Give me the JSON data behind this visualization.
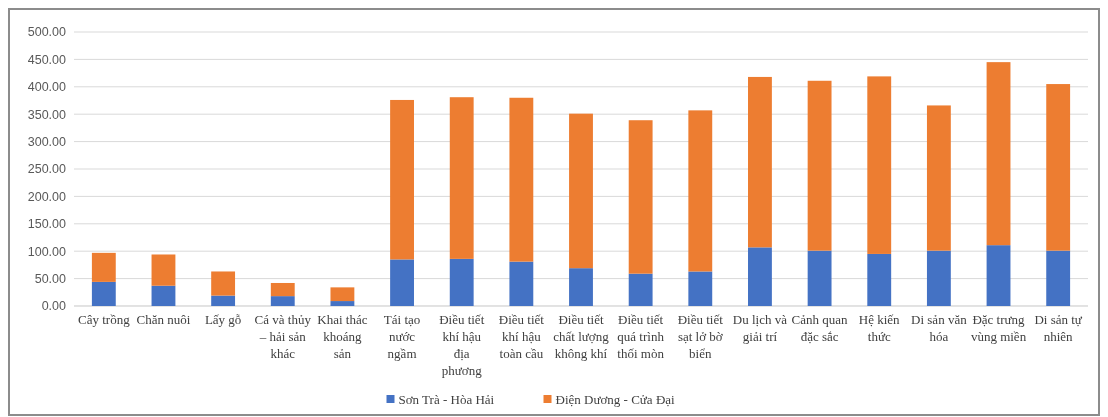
{
  "chart_data": {
    "type": "bar",
    "stacked": true,
    "categories": [
      "Cây trồng",
      "Chăn nuôi",
      "Lấy gỗ",
      "Cá và thủy – hải sản khác",
      "Khai thác khoáng sản",
      "Tái tạo nước ngầm",
      "Điều tiết khí hậu địa phương",
      "Điều tiết khí hậu toàn cầu",
      "Điều tiết chất lượng không khí",
      "Điều tiết quá trình thối mòn",
      "Điều tiết sạt lở bờ biển",
      "Du lịch và giải trí",
      "Cảnh quan đặc sắc",
      "Hệ kiến thức",
      "Di sản văn hóa",
      "Đặc trưng vùng miền",
      "Di sản tự nhiên"
    ],
    "series": [
      {
        "name": "Sơn Trà - Hòa Hải",
        "color": "#4472c4",
        "values": [
          44,
          37,
          19,
          18,
          9,
          85,
          86,
          81,
          69,
          59,
          63,
          107,
          101,
          95,
          101,
          111,
          101
        ]
      },
      {
        "name": "Điện Dương - Cửa Đại",
        "color": "#ed7d31",
        "values": [
          53,
          57,
          44,
          24,
          25,
          291,
          295,
          299,
          282,
          280,
          294,
          311,
          310,
          324,
          265,
          334,
          304
        ]
      }
    ],
    "ylim": [
      0,
      500
    ],
    "yticks": [
      {
        "value": 0,
        "label": "0.00"
      },
      {
        "value": 50,
        "label": "50.00"
      },
      {
        "value": 100,
        "label": "100.00"
      },
      {
        "value": 150,
        "label": "150.00"
      },
      {
        "value": 200,
        "label": "200.00"
      },
      {
        "value": 250,
        "label": "250.00"
      },
      {
        "value": 300,
        "label": "300.00"
      },
      {
        "value": 350,
        "label": "350.00"
      },
      {
        "value": 400,
        "label": "400.00"
      },
      {
        "value": 450,
        "label": "450.00"
      },
      {
        "value": 500,
        "label": "500.00"
      }
    ],
    "grid": "y",
    "legend": "bottom"
  }
}
